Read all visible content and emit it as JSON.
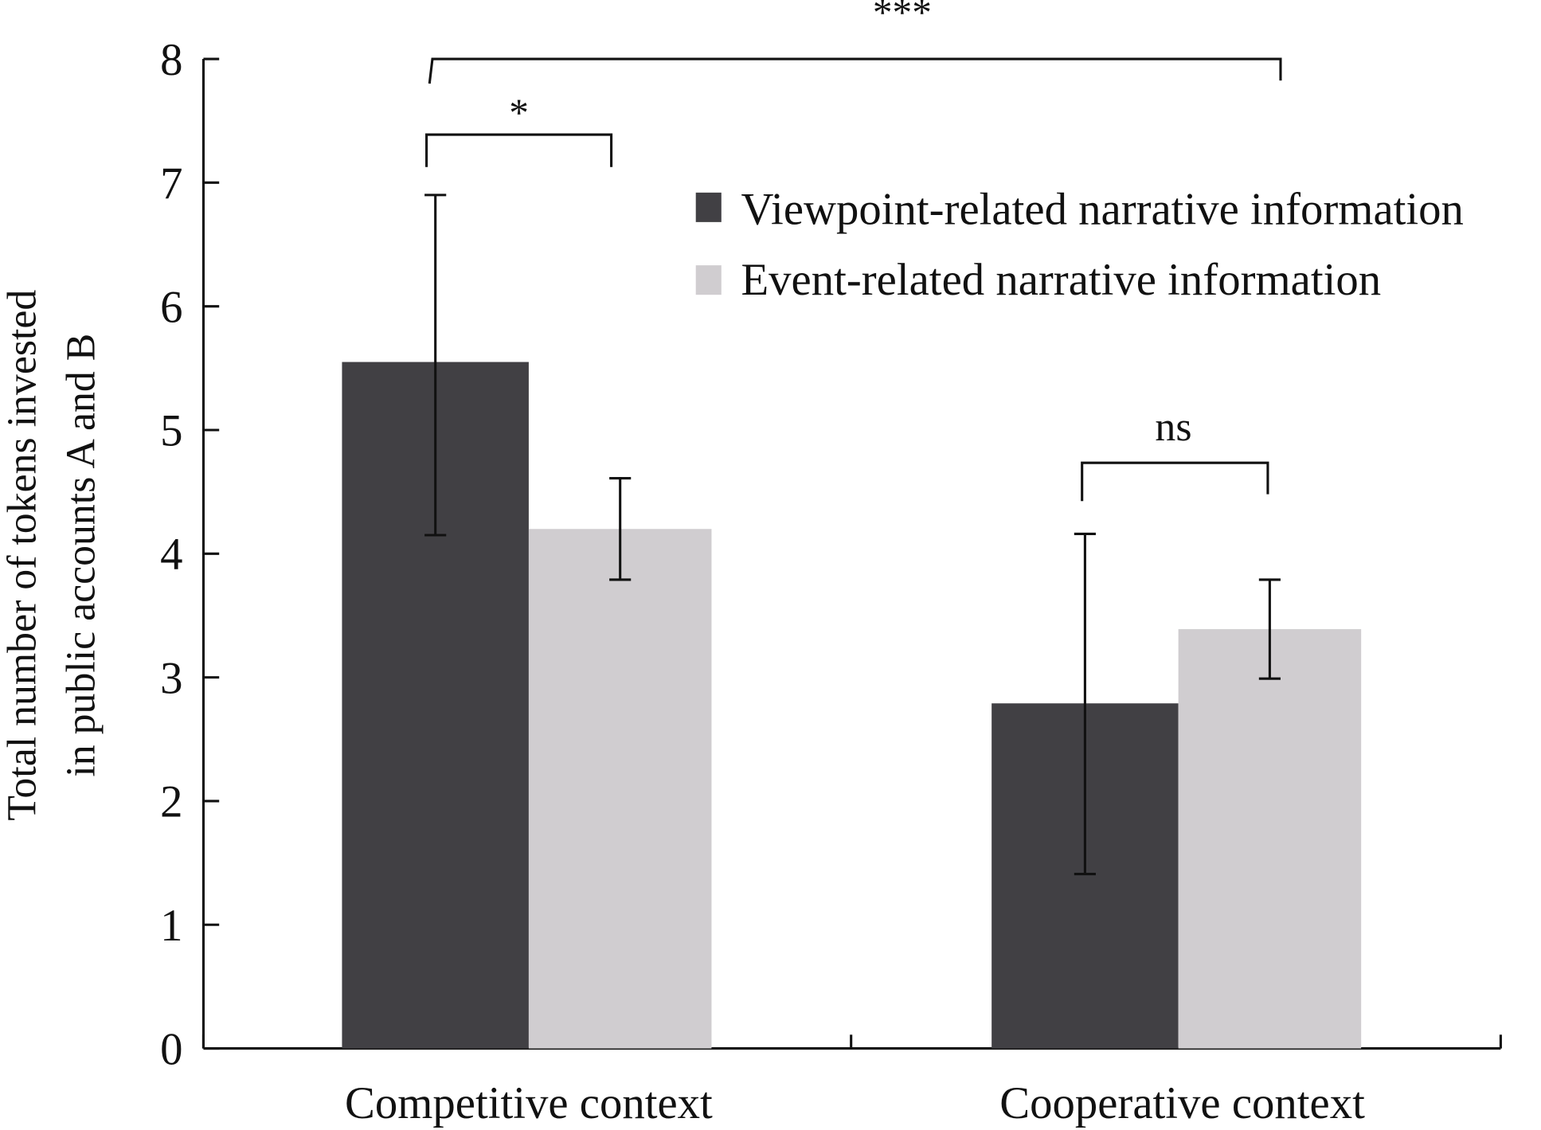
{
  "chart_data": {
    "type": "bar",
    "title": "",
    "xlabel": "",
    "ylabel": [
      "Total number of tokens invested",
      "in public accounts A and B"
    ],
    "ylim": [
      0,
      8
    ],
    "yticks": [
      "0",
      "1",
      "2",
      "3",
      "4",
      "5",
      "6",
      "7",
      "8"
    ],
    "categories": [
      "Competitive context",
      "Cooperative context"
    ],
    "series": [
      {
        "name": "Viewpoint-related narrative information",
        "color": "#414044",
        "values": [
          5.55,
          2.79
        ],
        "err_low": [
          4.15,
          1.41
        ],
        "err_high": [
          6.9,
          4.16
        ]
      },
      {
        "name": "Event-related narrative information",
        "color": "#d0cdd0",
        "values": [
          4.2,
          3.39
        ],
        "err_low": [
          3.79,
          2.99
        ],
        "err_high": [
          4.61,
          3.79
        ]
      }
    ],
    "legend_position": "top-right",
    "annotations": [
      {
        "label": "***",
        "between": "Competitive Viewpoint vs Cooperative Event"
      },
      {
        "label": "*",
        "between": "Competitive Viewpoint vs Competitive Event"
      },
      {
        "label": "ns",
        "between": "Cooperative Viewpoint vs Cooperative Event"
      }
    ]
  }
}
